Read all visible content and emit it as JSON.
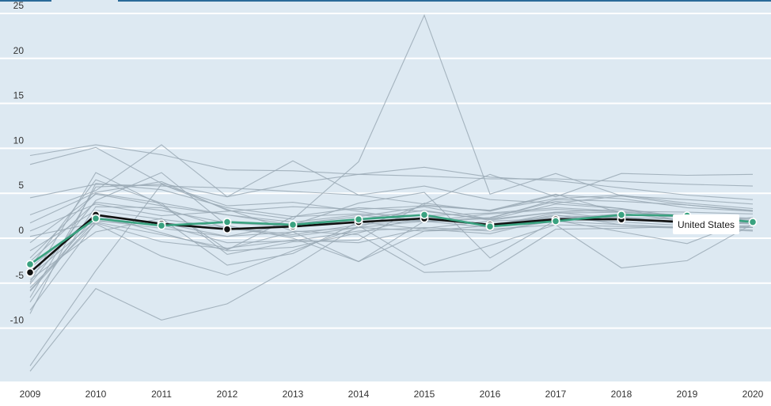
{
  "colors": {
    "plot_bg": "#dde9f2",
    "gridline": "#ffffff",
    "top_bar": "#2a6a99",
    "other_series": "#9aa9b5",
    "us": "#111111",
    "highlight": "#3aa280",
    "tooltip_bg": "#ffffff"
  },
  "tooltip": {
    "label": "United States"
  },
  "chart_data": {
    "type": "line",
    "x": [
      2009,
      2010,
      2011,
      2012,
      2013,
      2014,
      2015,
      2016,
      2017,
      2018,
      2019,
      2020
    ],
    "y_ticks": [
      -10,
      -5,
      0,
      5,
      10,
      15,
      20,
      25
    ],
    "y_tick_labels": [
      "-10",
      "-5",
      "0",
      "5",
      "10",
      "15",
      "20",
      "25"
    ],
    "x_tick_labels": [
      "2009",
      "2010",
      "2011",
      "2012",
      "2013",
      "2014",
      "2015",
      "2016",
      "2017",
      "2018",
      "2019",
      "2020"
    ],
    "ylim": [
      -15.5,
      26.5
    ],
    "grid": true,
    "highlighted": [
      {
        "name": "United States",
        "role": "us",
        "values": [
          -3.8,
          2.6,
          1.6,
          1.0,
          1.3,
          1.8,
          2.2,
          1.5,
          2.1,
          2.1,
          1.8,
          null
        ]
      },
      {
        "role": "highlight",
        "values": [
          -2.9,
          2.2,
          1.4,
          1.8,
          1.5,
          2.1,
          2.6,
          1.3,
          1.9,
          2.6,
          2.5,
          1.8
        ]
      }
    ],
    "other_series": [
      [
        9.2,
        10.4,
        9.3,
        7.6,
        7.5,
        7.1,
        6.9,
        6.6,
        6.6,
        6.3,
        6.0,
        5.8
      ],
      [
        8.2,
        10.1,
        6.1,
        4.6,
        8.6,
        4.8,
        3.8,
        7.1,
        4.6,
        7.2,
        7.0,
        7.1
      ],
      [
        4.5,
        6.0,
        5.8,
        5.6,
        5.2,
        4.8,
        5.8,
        4.3,
        3.9,
        4.7,
        4.3,
        3.8
      ],
      [
        2.6,
        5.3,
        10.4,
        4.6,
        6.1,
        7.1,
        7.9,
        6.8,
        6.4,
        5.6,
        4.8,
        4.3
      ],
      [
        1.7,
        5.1,
        6.3,
        3.1,
        2.1,
        8.5,
        24.8,
        4.9,
        7.2,
        4.7,
        3.7,
        3.1
      ],
      [
        0.8,
        3.8,
        2.5,
        3.0,
        3.5,
        3.2,
        3.6,
        3.1,
        4.4,
        4.8,
        3.9,
        3.3
      ],
      [
        -0.5,
        4.9,
        3.6,
        2.6,
        1.8,
        2.6,
        1.9,
        2.7,
        3.2,
        2.9,
        2.6,
        2.2
      ],
      [
        -1.4,
        3.1,
        2.1,
        1.2,
        0.4,
        1.5,
        2.0,
        1.6,
        2.3,
        2.4,
        1.5,
        1.8
      ],
      [
        -2.6,
        4.0,
        3.1,
        1.7,
        1.3,
        2.1,
        3.1,
        2.0,
        2.9,
        2.1,
        1.7,
        2.3
      ],
      [
        -3.3,
        2.6,
        0.6,
        -1.4,
        -1.0,
        0.6,
        2.4,
        1.4,
        2.8,
        2.9,
        2.4,
        2.0
      ],
      [
        -4.2,
        1.9,
        1.5,
        -0.5,
        -0.3,
        0.8,
        1.2,
        0.8,
        1.9,
        1.5,
        1.1,
        1.2
      ],
      [
        -4.6,
        0.7,
        2.2,
        -3.0,
        -1.7,
        1.8,
        1.0,
        0.5,
        2.2,
        2.7,
        2.3,
        1.6
      ],
      [
        -5.1,
        4.2,
        7.3,
        1.4,
        0.0,
        -2.6,
        1.9,
        2.3,
        4.1,
        3.3,
        2.3,
        1.9
      ],
      [
        -5.5,
        1.6,
        -2.0,
        -4.1,
        -1.4,
        1.2,
        3.7,
        3.1,
        4.9,
        2.8,
        1.9,
        1.2
      ],
      [
        -5.8,
        2.5,
        1.7,
        0.2,
        1.6,
        2.4,
        3.5,
        2.1,
        2.9,
        3.2,
        2.4,
        1.9
      ],
      [
        -6.6,
        5.7,
        6.0,
        3.2,
        0.8,
        0.4,
        -3.8,
        -3.6,
        1.0,
        1.1,
        1.3,
        1.2
      ],
      [
        -7.1,
        3.5,
        3.4,
        1.1,
        0.2,
        1.2,
        0.8,
        1.4,
        2.6,
        1.5,
        1.2,
        1.4
      ],
      [
        -8.0,
        1.8,
        0.4,
        -1.1,
        -0.2,
        -0.5,
        1.1,
        1.9,
        2.2,
        1.8,
        1.4,
        0.9
      ],
      [
        -8.4,
        6.1,
        5.4,
        3.4,
        2.4,
        2.7,
        2.5,
        2.8,
        3.4,
        3.0,
        2.9,
        2.7
      ],
      [
        -14.2,
        -3.6,
        6.0,
        3.6,
        4.0,
        3.0,
        1.8,
        2.2,
        4.3,
        4.1,
        3.7,
        3.0
      ],
      [
        -14.8,
        -5.6,
        -9.1,
        -7.3,
        -3.2,
        1.4,
        -3.0,
        -0.8,
        1.5,
        -3.3,
        -2.5,
        1.6
      ],
      [
        -4.9,
        7.3,
        3.7,
        -1.3,
        2.4,
        3.4,
        3.0,
        2.1,
        3.8,
        3.3,
        1.8,
        1.6
      ],
      [
        -2.2,
        5.0,
        3.9,
        2.6,
        1.5,
        3.9,
        5.1,
        -2.2,
        2.0,
        0.7,
        -0.6,
        2.2
      ],
      [
        0.2,
        1.7,
        -0.4,
        -1.2,
        0.7,
        -2.6,
        0.8,
        1.0,
        1.5,
        1.3,
        1.1,
        0.8
      ],
      [
        -5.9,
        2.0,
        1.1,
        0.2,
        0.7,
        1.2,
        1.9,
        1.2,
        2.5,
        2.3,
        2.1,
        2.2
      ],
      [
        -3.2,
        6.5,
        3.9,
        -1.8,
        -0.4,
        -0.2,
        3.9,
        3.0,
        4.8,
        4.4,
        3.4,
        3.0
      ]
    ]
  }
}
